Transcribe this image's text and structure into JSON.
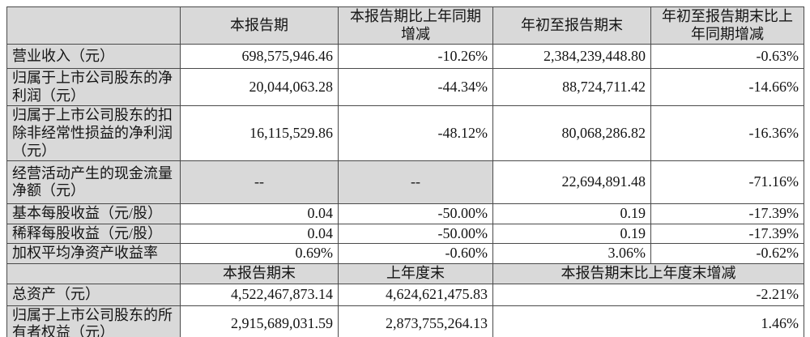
{
  "colors": {
    "table_gray": "#d9d9d9",
    "border": "#4a4a4a",
    "background": "#ffffff",
    "text": "#141414"
  },
  "table": {
    "header": {
      "empty": "",
      "current_period": "本报告期",
      "current_period_yoy": "本报告期比上年同期增减",
      "ytd": "年初至报告期末",
      "ytd_yoy": "年初至报告期末比上年同期增减"
    },
    "rows": [
      {
        "label": "营业收入（元）",
        "values": [
          "698,575,946.46",
          "-10.26%",
          "2,384,239,448.80",
          "-0.63%"
        ]
      },
      {
        "label": "归属于上市公司股东的净利润（元）",
        "values": [
          "20,044,063.28",
          "-44.34%",
          "88,724,711.42",
          "-14.66%"
        ]
      },
      {
        "label": "归属于上市公司股东的扣除非经常性损益的净利润（元）",
        "values": [
          "16,115,529.86",
          "-48.12%",
          "80,068,286.82",
          "-16.36%"
        ]
      },
      {
        "label": "经营活动产生的现金流量净额（元）",
        "values": [
          "--",
          "--",
          "22,694,891.48",
          "-71.16%"
        ]
      },
      {
        "label": "基本每股收益（元/股）",
        "values": [
          "0.04",
          "-50.00%",
          "0.19",
          "-17.39%"
        ]
      },
      {
        "label": "稀释每股收益（元/股）",
        "values": [
          "0.04",
          "-50.00%",
          "0.19",
          "-17.39%"
        ]
      },
      {
        "label": "加权平均净资产收益率",
        "values": [
          "0.69%",
          "-0.60%",
          "3.06%",
          "-0.62%"
        ]
      }
    ],
    "subheader": {
      "empty": "",
      "period_end": "本报告期末",
      "prior_year_end": "上年度末",
      "period_end_vs_prior": "本报告期末比上年度末增减"
    },
    "bottom_rows": [
      {
        "label": "总资产（元）",
        "values": [
          "4,522,467,873.14",
          "4,624,621,475.83",
          "-2.21%"
        ]
      },
      {
        "label": "归属于上市公司股东的所有者权益（元）",
        "values": [
          "2,915,689,031.59",
          "2,873,755,264.13",
          "1.46%"
        ]
      }
    ]
  }
}
